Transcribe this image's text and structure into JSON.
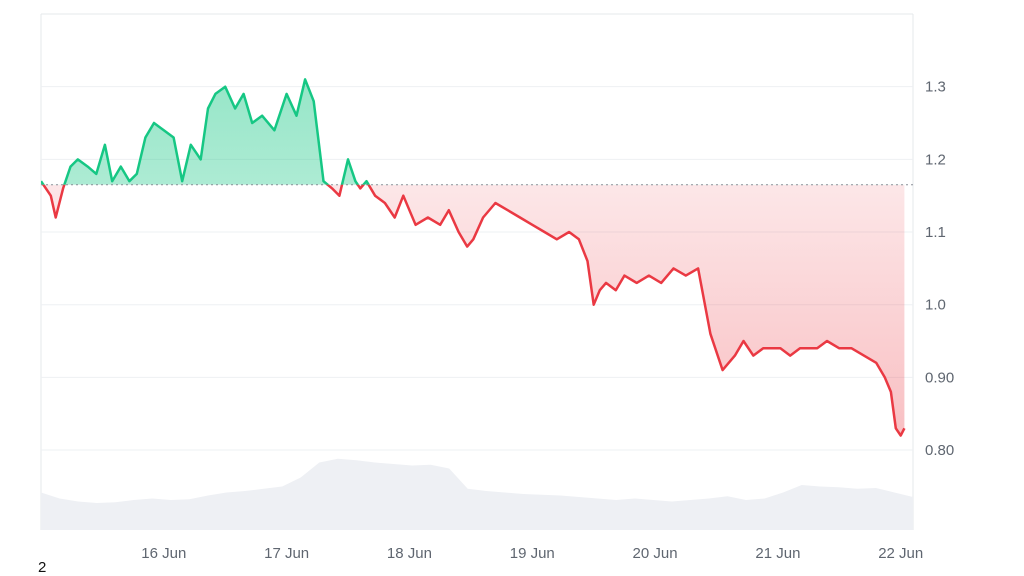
{
  "chart_data": {
    "type": "area",
    "title": "",
    "xlabel": "",
    "ylabel": "",
    "x_tick_labels": [
      "16 Jun",
      "17 Jun",
      "18 Jun",
      "19 Jun",
      "20 Jun",
      "21 Jun",
      "22 Jun"
    ],
    "y_tick_labels": [
      "0.80",
      "0.90",
      "1.0",
      "1.1",
      "1.2",
      "1.3"
    ],
    "y_ticks": [
      0.8,
      0.9,
      1.0,
      1.1,
      1.2,
      1.3
    ],
    "ylim": [
      0.69,
      1.4
    ],
    "xlim": [
      0,
      7.1
    ],
    "baseline": 1.165,
    "grid": true,
    "y_axis_position": "right",
    "colors": {
      "above": "#16c784",
      "below": "#ea3943",
      "volume": "#eef0f4"
    },
    "series": [
      {
        "x": [
          0,
          0.08,
          0.12,
          0.18,
          0.24,
          0.3,
          0.38,
          0.45,
          0.52,
          0.58,
          0.65,
          0.72,
          0.78,
          0.85,
          0.92,
          1.0,
          1.08,
          1.15,
          1.22,
          1.3,
          1.36,
          1.42,
          1.5,
          1.58,
          1.65,
          1.72,
          1.8,
          1.9,
          2.0,
          2.08,
          2.15,
          2.22,
          2.3,
          2.37,
          2.43,
          2.5,
          2.56,
          2.6,
          2.65,
          2.72,
          2.8,
          2.88,
          2.95,
          3.05,
          3.15,
          3.25,
          3.32,
          3.4,
          3.47,
          3.52,
          3.6,
          3.7,
          3.8,
          3.9,
          4.0,
          4.1,
          4.2,
          4.3,
          4.38,
          4.45,
          4.5,
          4.55,
          4.6,
          4.68,
          4.75,
          4.85,
          4.95,
          5.05,
          5.15,
          5.25,
          5.35,
          5.45,
          5.55,
          5.65,
          5.72,
          5.8,
          5.88,
          5.95,
          6.02,
          6.1,
          6.18,
          6.25,
          6.32,
          6.4,
          6.5,
          6.6,
          6.7,
          6.8,
          6.87,
          6.92,
          6.96,
          7.0,
          7.03
        ],
        "values": [
          1.17,
          1.15,
          1.12,
          1.16,
          1.19,
          1.2,
          1.19,
          1.18,
          1.22,
          1.17,
          1.19,
          1.17,
          1.18,
          1.23,
          1.25,
          1.24,
          1.23,
          1.17,
          1.22,
          1.2,
          1.27,
          1.29,
          1.3,
          1.27,
          1.29,
          1.25,
          1.26,
          1.24,
          1.29,
          1.26,
          1.31,
          1.28,
          1.17,
          1.16,
          1.15,
          1.2,
          1.17,
          1.16,
          1.17,
          1.15,
          1.14,
          1.12,
          1.15,
          1.11,
          1.12,
          1.11,
          1.13,
          1.1,
          1.08,
          1.09,
          1.12,
          1.14,
          1.13,
          1.12,
          1.11,
          1.1,
          1.09,
          1.1,
          1.09,
          1.06,
          1.0,
          1.02,
          1.03,
          1.02,
          1.04,
          1.03,
          1.04,
          1.03,
          1.05,
          1.04,
          1.05,
          0.96,
          0.91,
          0.93,
          0.95,
          0.93,
          0.94,
          0.94,
          0.94,
          0.93,
          0.94,
          0.94,
          0.94,
          0.95,
          0.94,
          0.94,
          0.93,
          0.92,
          0.9,
          0.88,
          0.83,
          0.82,
          0.83
        ]
      }
    ],
    "volume_profile": [
      0.5,
      0.42,
      0.38,
      0.36,
      0.37,
      0.4,
      0.42,
      0.4,
      0.41,
      0.46,
      0.5,
      0.52,
      0.55,
      0.58,
      0.7,
      0.9,
      0.95,
      0.93,
      0.9,
      0.88,
      0.86,
      0.87,
      0.82,
      0.55,
      0.52,
      0.5,
      0.48,
      0.47,
      0.46,
      0.44,
      0.42,
      0.4,
      0.42,
      0.4,
      0.38,
      0.4,
      0.42,
      0.45,
      0.4,
      0.42,
      0.5,
      0.6,
      0.58,
      0.57,
      0.55,
      0.56,
      0.5,
      0.44
    ]
  },
  "footnote": "2"
}
